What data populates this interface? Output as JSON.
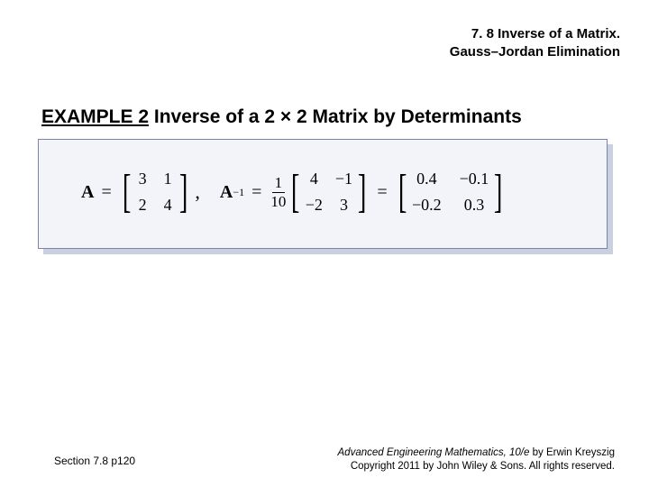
{
  "header": {
    "line1": "7. 8 Inverse of a Matrix.",
    "line2": "Gauss–Jordan Elimination"
  },
  "example": {
    "prefix": "EXAMPLE 2",
    "rest": " Inverse of a 2 × 2 Matrix by Determinants"
  },
  "equation": {
    "A_label": "A",
    "A": {
      "a11": "3",
      "a12": "1",
      "a21": "2",
      "a22": "4"
    },
    "Ainv_label": "A",
    "Ainv_sup": "−1",
    "frac": {
      "num": "1",
      "den": "10"
    },
    "M1": {
      "a11": "4",
      "a12": "−1",
      "a21": "−2",
      "a22": "3"
    },
    "M2": {
      "a11": "0.4",
      "a12": "−0.1",
      "a21": "−0.2",
      "a22": "0.3"
    },
    "eq": "=",
    "comma": ","
  },
  "footer": {
    "left": "Section 7.8  p120",
    "right_title": "Advanced Engineering Mathematics, 10/e",
    "right_author": " by Erwin Kreyszig",
    "right_copy": "Copyright 2011 by John Wiley & Sons. All rights reserved."
  },
  "style": {
    "box_bg": "#f3f4fa",
    "box_border": "#7b84a0",
    "shadow": "#c9d0e0"
  }
}
